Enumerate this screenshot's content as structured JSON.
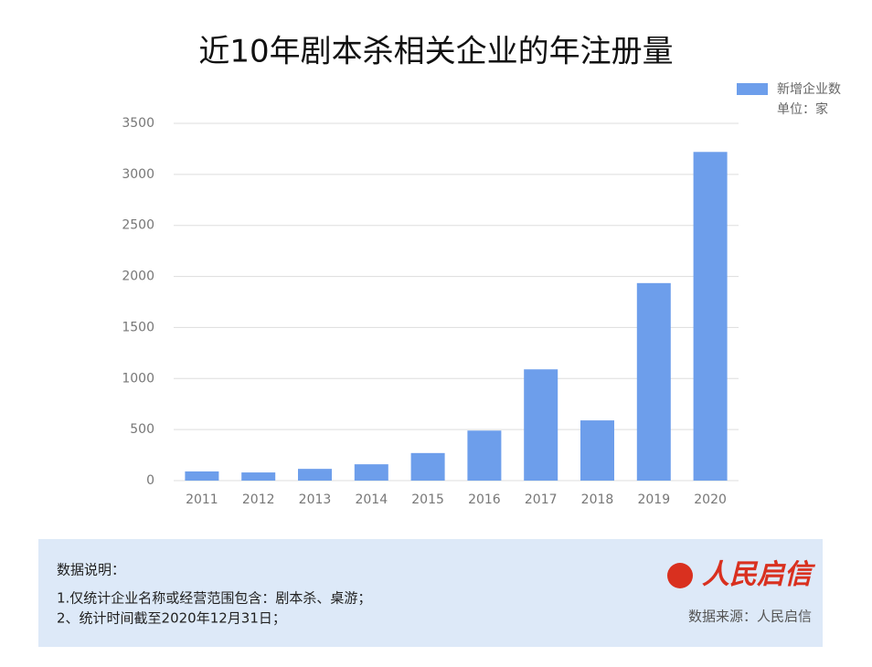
{
  "chart_data": {
    "type": "bar",
    "title": "近10年剧本杀相关企业的年注册量",
    "categories": [
      "2011",
      "2012",
      "2013",
      "2014",
      "2015",
      "2016",
      "2017",
      "2018",
      "2019",
      "2020"
    ],
    "series": [
      {
        "name": "新增企业数",
        "color": "#6d9eeb",
        "values": [
          90,
          80,
          115,
          160,
          270,
          490,
          1090,
          590,
          1935,
          3220
        ]
      }
    ],
    "unit_note": "单位：家",
    "ylim": [
      0,
      3500
    ],
    "yticks": [
      0,
      500,
      1000,
      1500,
      2000,
      2500,
      3000,
      3500
    ],
    "grid": true
  },
  "notes": {
    "heading": "数据说明：",
    "lines": [
      "1.仅统计企业名称或经营范围包含：剧本杀、桌游；",
      "2、统计时间截至2020年12月31日；"
    ],
    "logo": "人民启信",
    "source": "数据来源：人民启信"
  }
}
